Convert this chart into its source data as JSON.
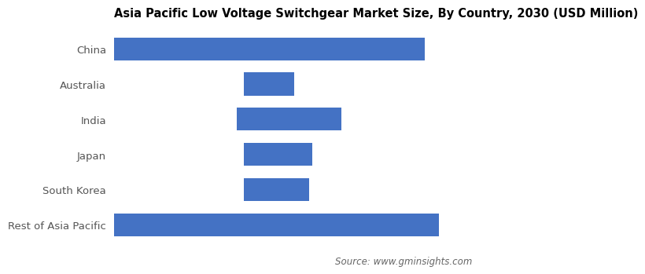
{
  "title": "Asia Pacific Low Voltage Switchgear Market Size, By Country, 2030 (USD Million)",
  "categories": [
    "China",
    "Australia",
    "India",
    "Japan",
    "South Korea",
    "Rest of Asia Pacific"
  ],
  "values": [
    4300,
    700,
    1450,
    950,
    900,
    4500
  ],
  "left_offsets": [
    0,
    1800,
    1700,
    1800,
    1800,
    0
  ],
  "bar_color": "#4472C4",
  "background_color": "#ffffff",
  "source_text": "Source: www.gminsights.com",
  "title_fontsize": 10.5,
  "label_fontsize": 9.5,
  "source_fontsize": 8.5,
  "xlim_max": 5000
}
